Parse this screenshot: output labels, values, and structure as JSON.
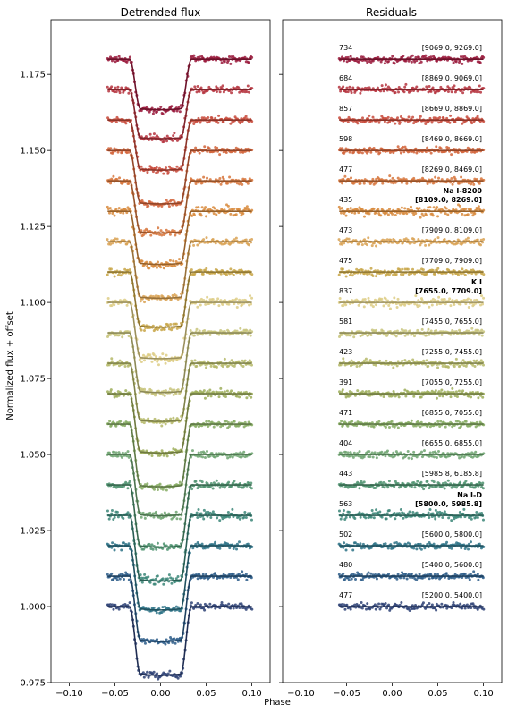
{
  "chart_data": [
    {
      "type": "scatter",
      "title": "Detrended flux",
      "ylabel": "Normalized flux + offset",
      "xlim": [
        -0.12,
        0.12
      ],
      "ylim": [
        0.975,
        1.193
      ],
      "xticks": [
        "−0.10",
        "−0.05",
        "0.00",
        "0.05",
        "0.10"
      ],
      "yticks": [
        "0.975",
        "1.000",
        "1.025",
        "1.050",
        "1.075",
        "1.100",
        "1.125",
        "1.150",
        "1.175"
      ],
      "series_offset": 0.01,
      "transit_depth_range": [
        0.015,
        0.025
      ]
    },
    {
      "type": "scatter",
      "title": "Residuals",
      "xlim": [
        -0.12,
        0.12
      ],
      "xticks": [
        "−0.10",
        "−0.05",
        "0.00",
        "0.05",
        "0.10"
      ]
    }
  ],
  "shared_xlabel": "Phase",
  "channels": [
    {
      "label": "[5200.0, 5400.0]",
      "count": "477",
      "color": "#2e4276"
    },
    {
      "label": "[5400.0, 5600.0]",
      "count": "480",
      "color": "#2b5c88"
    },
    {
      "label": "[5600.0, 5800.0]",
      "count": "502",
      "color": "#2e7387"
    },
    {
      "label": "Na I-D",
      "label2": "[5800.0, 5985.8]",
      "count": "563",
      "color": "#3b8678",
      "bold": true
    },
    {
      "label": "[5985.8, 6185.8]",
      "count": "443",
      "color": "#4f9370"
    },
    {
      "label": "[6655.0, 6855.0]",
      "count": "404",
      "color": "#6ea571"
    },
    {
      "label": "[6855.0, 7055.0]",
      "count": "471",
      "color": "#86ab63"
    },
    {
      "label": "[7055.0, 7255.0]",
      "count": "391",
      "color": "#9eae5b"
    },
    {
      "label": "[7255.0, 7455.0]",
      "count": "423",
      "color": "#b5b968"
    },
    {
      "label": "[7455.0, 7655.0]",
      "count": "581",
      "color": "#c8c47c"
    },
    {
      "label": "K I",
      "label2": "[7655.0, 7709.0]",
      "count": "837",
      "color": "#ddcd85",
      "bold": true
    },
    {
      "label": "[7709.0, 7909.0]",
      "count": "475",
      "color": "#c8a648"
    },
    {
      "label": "[7909.0, 8109.0]",
      "count": "473",
      "color": "#d9a253"
    },
    {
      "label": "Na I-8200",
      "label2": "[8109.0, 8269.0]",
      "count": "435",
      "color": "#d88a3c",
      "bold": true
    },
    {
      "label": "[8269.0, 8469.0]",
      "count": "477",
      "color": "#d7763c"
    },
    {
      "label": "[8469.0, 8669.0]",
      "count": "598",
      "color": "#d2643a"
    },
    {
      "label": "[8669.0, 8869.0]",
      "count": "857",
      "color": "#c84a3b"
    },
    {
      "label": "[8869.0, 9069.0]",
      "count": "684",
      "color": "#b5343e"
    },
    {
      "label": "[9069.0, 9269.0]",
      "count": "734",
      "color": "#9a1a3c"
    }
  ]
}
